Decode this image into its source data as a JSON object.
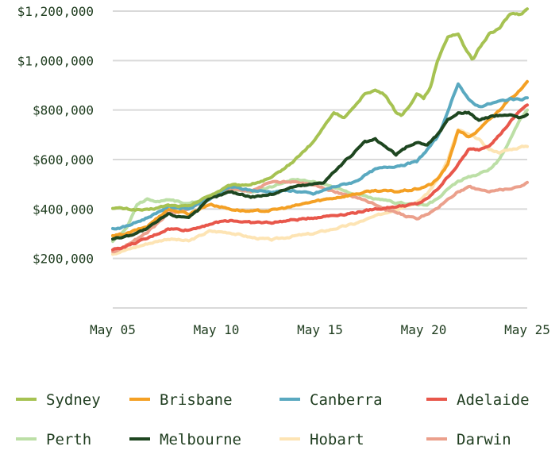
{
  "chart_data": {
    "type": "line",
    "title": "",
    "xlabel": "",
    "ylabel": "",
    "x_tick_labels": [
      "May 05",
      "May 10",
      "May 15",
      "May 20",
      "May 25"
    ],
    "x_ticks": [
      2005.33,
      2010.33,
      2015.33,
      2020.33,
      2025.33
    ],
    "xlim": [
      2005.33,
      2025.33
    ],
    "ylim": [
      0,
      1200000
    ],
    "y_ticks": [
      200000,
      400000,
      600000,
      800000,
      1000000,
      1200000
    ],
    "y_tick_labels": [
      "$200,000",
      "$400,000",
      "$600,000",
      "$800,000",
      "$1,000,000",
      "$1,200,000"
    ],
    "grid": "horizontal",
    "legend_position": "bottom",
    "series": [
      {
        "name": "Sydney",
        "color": "#a6c252",
        "x": [
          2005.33,
          2006,
          2007,
          2008,
          2009,
          2010,
          2011,
          2012,
          2013,
          2014,
          2015,
          2015.5,
          2016,
          2016.5,
          2017,
          2017.5,
          2018,
          2018.5,
          2019,
          2019.3,
          2019.7,
          2020,
          2020.33,
          2020.7,
          2021,
          2021.5,
          2022,
          2022.3,
          2022.7,
          2023,
          2023.5,
          2024,
          2024.5,
          2025,
          2025.33
        ],
        "y": [
          405000,
          400000,
          395000,
          415000,
          410000,
          455000,
          495000,
          500000,
          525000,
          590000,
          670000,
          730000,
          790000,
          770000,
          810000,
          870000,
          880000,
          860000,
          790000,
          780000,
          820000,
          870000,
          850000,
          900000,
          1000000,
          1100000,
          1110000,
          1050000,
          1000000,
          1050000,
          1110000,
          1130000,
          1190000,
          1185000,
          1205000
        ]
      },
      {
        "name": "Brisbane",
        "color": "#f4a024",
        "x": [
          2005.33,
          2006,
          2007,
          2008,
          2009,
          2010,
          2011,
          2012,
          2013,
          2014,
          2015,
          2016,
          2017,
          2018,
          2019,
          2020,
          2020.7,
          2021,
          2021.5,
          2022,
          2022.5,
          2023,
          2023.5,
          2024,
          2024.5,
          2025,
          2025.33
        ],
        "y": [
          290000,
          300000,
          330000,
          400000,
          380000,
          420000,
          400000,
          390000,
          395000,
          410000,
          430000,
          445000,
          460000,
          475000,
          470000,
          480000,
          500000,
          520000,
          580000,
          720000,
          690000,
          720000,
          760000,
          800000,
          850000,
          880000,
          910000
        ]
      },
      {
        "name": "Canberra",
        "color": "#5aa9c0",
        "x": [
          2005.33,
          2006,
          2007,
          2008,
          2009,
          2010,
          2011,
          2012,
          2013,
          2014,
          2015,
          2016,
          2017,
          2018,
          2019,
          2020,
          2020.5,
          2021,
          2021.5,
          2022,
          2022.5,
          2023,
          2023.5,
          2024,
          2024.5,
          2025,
          2025.33
        ],
        "y": [
          320000,
          330000,
          365000,
          410000,
          400000,
          440000,
          490000,
          475000,
          470000,
          475000,
          460000,
          490000,
          510000,
          560000,
          575000,
          590000,
          640000,
          690000,
          790000,
          910000,
          840000,
          815000,
          825000,
          835000,
          845000,
          840000,
          850000
        ]
      },
      {
        "name": "Adelaide",
        "color": "#e8574b",
        "x": [
          2005.33,
          2006,
          2007,
          2008,
          2009,
          2010,
          2011,
          2012,
          2013,
          2014,
          2015,
          2016,
          2017,
          2018,
          2019,
          2020,
          2020.5,
          2021,
          2021.5,
          2022,
          2022.5,
          2023,
          2023.5,
          2024,
          2024.5,
          2025,
          2025.33
        ],
        "y": [
          235000,
          250000,
          280000,
          320000,
          315000,
          340000,
          355000,
          345000,
          345000,
          355000,
          365000,
          375000,
          385000,
          400000,
          410000,
          420000,
          440000,
          480000,
          530000,
          580000,
          640000,
          640000,
          660000,
          700000,
          750000,
          800000,
          820000
        ]
      },
      {
        "name": "Perth",
        "color": "#bcdfa6",
        "x": [
          2005.33,
          2006,
          2006.5,
          2007,
          2007.5,
          2008,
          2009,
          2010,
          2011,
          2012,
          2013,
          2014,
          2015,
          2016,
          2017,
          2018,
          2019,
          2020,
          2020.5,
          2021,
          2021.5,
          2022,
          2022.5,
          2023,
          2023.5,
          2024,
          2024.5,
          2025,
          2025.33
        ],
        "y": [
          270000,
          320000,
          420000,
          440000,
          430000,
          440000,
          420000,
          450000,
          480000,
          470000,
          490000,
          520000,
          510000,
          490000,
          460000,
          440000,
          425000,
          420000,
          415000,
          440000,
          480000,
          510000,
          530000,
          540000,
          560000,
          600000,
          680000,
          770000,
          800000
        ]
      },
      {
        "name": "Melbourne",
        "color": "#1e4620",
        "x": [
          2005.33,
          2006,
          2007,
          2008,
          2008.5,
          2009,
          2009.5,
          2010,
          2011,
          2012,
          2013,
          2014,
          2015,
          2015.5,
          2016,
          2016.5,
          2017,
          2017.5,
          2018,
          2018.5,
          2019,
          2019.5,
          2020,
          2020.5,
          2021,
          2021.5,
          2022,
          2022.5,
          2023,
          2023.5,
          2024,
          2024.5,
          2025,
          2025.33
        ],
        "y": [
          280000,
          290000,
          320000,
          380000,
          370000,
          370000,
          400000,
          440000,
          470000,
          450000,
          460000,
          490000,
          500000,
          510000,
          550000,
          590000,
          630000,
          670000,
          680000,
          650000,
          620000,
          650000,
          670000,
          660000,
          700000,
          760000,
          790000,
          790000,
          760000,
          770000,
          780000,
          780000,
          770000,
          780000
        ]
      },
      {
        "name": "Hobart",
        "color": "#fde4b4",
        "x": [
          2005.33,
          2006,
          2007,
          2008,
          2009,
          2010,
          2011,
          2012,
          2013,
          2014,
          2015,
          2016,
          2017,
          2018,
          2019,
          2020,
          2020.5,
          2021,
          2021.5,
          2022,
          2022.5,
          2023,
          2023.5,
          2024,
          2024.5,
          2025,
          2025.33
        ],
        "y": [
          220000,
          235000,
          260000,
          280000,
          270000,
          310000,
          305000,
          285000,
          275000,
          290000,
          300000,
          320000,
          340000,
          370000,
          400000,
          430000,
          460000,
          520000,
          600000,
          720000,
          700000,
          680000,
          640000,
          630000,
          640000,
          650000,
          655000
        ]
      },
      {
        "name": "Darwin",
        "color": "#eba08c",
        "x": [
          2005.33,
          2006,
          2007,
          2008,
          2009,
          2010,
          2011,
          2012,
          2013,
          2014,
          2015,
          2016,
          2017,
          2018,
          2018.5,
          2019,
          2019.5,
          2020,
          2020.5,
          2021,
          2021.5,
          2022,
          2022.5,
          2023,
          2023.5,
          2024,
          2024.5,
          2025,
          2025.33
        ],
        "y": [
          225000,
          255000,
          305000,
          380000,
          400000,
          450000,
          480000,
          470000,
          510000,
          510000,
          500000,
          470000,
          450000,
          420000,
          400000,
          390000,
          370000,
          360000,
          380000,
          400000,
          440000,
          470000,
          490000,
          480000,
          470000,
          480000,
          480000,
          490000,
          510000
        ]
      }
    ]
  }
}
